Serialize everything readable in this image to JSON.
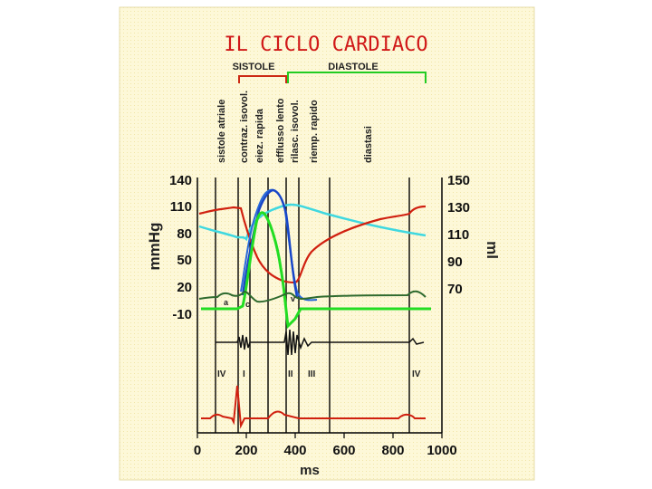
{
  "title": "IL CICLO CARDIACO",
  "phase_headers": {
    "systole": "SISTOLE",
    "diastole": "DIASTOLE"
  },
  "phases": [
    "sistole atriale",
    "contraz. isovol.",
    "eiez. rapida",
    "efflusso lento",
    "rilasc. isovol.",
    "riemp. rapido",
    "diastasi"
  ],
  "axes": {
    "left_label": "mmHg",
    "right_label": "ml",
    "x_label": "ms",
    "left_ticks": [
      "140",
      "110",
      "80",
      "50",
      "20",
      "-10"
    ],
    "right_ticks": [
      "150",
      "130",
      "110",
      "90",
      "70"
    ],
    "x_ticks": [
      "0",
      "200",
      "400",
      "600",
      "800",
      "1000"
    ]
  },
  "wave_labels": {
    "a": "a",
    "c": "c",
    "v": "v"
  },
  "heart_sounds": [
    "IV",
    "I",
    "II",
    "III",
    "IV"
  ],
  "colors": {
    "background": "#fdf8d8",
    "aortic_pressure": "#1846c8",
    "ventricular_pressure": "#2a6ad8",
    "atrial_pressure": "#2e6a2e",
    "ventricular_volume": "#3fd8e0",
    "red_trace": "#d02010",
    "green_trace": "#22dd22",
    "title": "#d01818",
    "systole_bracket": "#cc2a14",
    "diastole_bracket": "#22cc22"
  }
}
